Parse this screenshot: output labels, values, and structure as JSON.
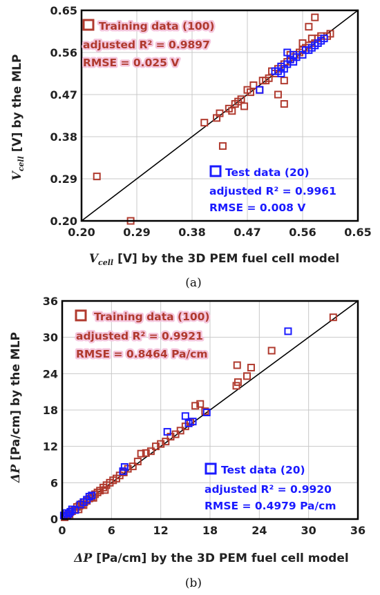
{
  "chart_data": [
    {
      "type": "scatter",
      "panel_label": "(a)",
      "xlabel_var": "V",
      "xlabel_sub": "cell",
      "xlabel_text": "[V] by the 3D PEM fuel cell model",
      "ylabel_var": "V",
      "ylabel_sub": "cell",
      "ylabel_text": "[V] by the MLP",
      "xlim": [
        0.2,
        0.65
      ],
      "ylim": [
        0.2,
        0.65
      ],
      "xticks": [
        "0.20",
        "0.29",
        "0.38",
        "0.47",
        "0.56",
        "0.65"
      ],
      "yticks": [
        "0.20",
        "0.29",
        "0.38",
        "0.47",
        "0.56",
        "0.65"
      ],
      "grid": true,
      "reference_line": "y = x",
      "legend_training": {
        "title": "Training data (100)",
        "r2": "adjusted R² = 0.9897",
        "rmse": "RMSE = 0.025 V",
        "color": "#b03a2e"
      },
      "legend_test": {
        "title": "Test data (20)",
        "r2": "adjusted R² = 0.9961",
        "rmse": "RMSE = 0.008 V",
        "color": "#1a1aff"
      },
      "series": [
        {
          "name": "Training data (100)",
          "color": "#b03a2e",
          "points": [
            [
              0.225,
              0.295
            ],
            [
              0.28,
              0.2
            ],
            [
              0.4,
              0.41
            ],
            [
              0.42,
              0.42
            ],
            [
              0.425,
              0.43
            ],
            [
              0.43,
              0.36
            ],
            [
              0.44,
              0.44
            ],
            [
              0.445,
              0.435
            ],
            [
              0.45,
              0.45
            ],
            [
              0.455,
              0.455
            ],
            [
              0.46,
              0.46
            ],
            [
              0.465,
              0.445
            ],
            [
              0.47,
              0.48
            ],
            [
              0.475,
              0.475
            ],
            [
              0.48,
              0.49
            ],
            [
              0.49,
              0.48
            ],
            [
              0.495,
              0.5
            ],
            [
              0.5,
              0.5
            ],
            [
              0.505,
              0.505
            ],
            [
              0.51,
              0.52
            ],
            [
              0.515,
              0.515
            ],
            [
              0.52,
              0.47
            ],
            [
              0.52,
              0.525
            ],
            [
              0.525,
              0.53
            ],
            [
              0.53,
              0.45
            ],
            [
              0.53,
              0.5
            ],
            [
              0.53,
              0.535
            ],
            [
              0.535,
              0.54
            ],
            [
              0.54,
              0.545
            ],
            [
              0.54,
              0.555
            ],
            [
              0.545,
              0.55
            ],
            [
              0.55,
              0.555
            ],
            [
              0.555,
              0.56
            ],
            [
              0.56,
              0.565
            ],
            [
              0.56,
              0.58
            ],
            [
              0.565,
              0.57
            ],
            [
              0.57,
              0.575
            ],
            [
              0.57,
              0.615
            ],
            [
              0.575,
              0.59
            ],
            [
              0.58,
              0.58
            ],
            [
              0.58,
              0.635
            ],
            [
              0.585,
              0.59
            ],
            [
              0.59,
              0.595
            ],
            [
              0.6,
              0.595
            ],
            [
              0.605,
              0.6
            ]
          ]
        },
        {
          "name": "Test data (20)",
          "color": "#1a1aff",
          "points": [
            [
              0.49,
              0.48
            ],
            [
              0.515,
              0.52
            ],
            [
              0.52,
              0.52
            ],
            [
              0.525,
              0.53
            ],
            [
              0.53,
              0.525
            ],
            [
              0.535,
              0.535
            ],
            [
              0.535,
              0.56
            ],
            [
              0.54,
              0.545
            ],
            [
              0.545,
              0.54
            ],
            [
              0.55,
              0.55
            ],
            [
              0.56,
              0.555
            ],
            [
              0.565,
              0.565
            ],
            [
              0.57,
              0.565
            ],
            [
              0.575,
              0.57
            ],
            [
              0.58,
              0.575
            ],
            [
              0.585,
              0.58
            ],
            [
              0.59,
              0.585
            ],
            [
              0.595,
              0.59
            ],
            [
              0.545,
              0.555
            ],
            [
              0.525,
              0.515
            ]
          ]
        }
      ]
    },
    {
      "type": "scatter",
      "panel_label": "(b)",
      "xlabel_var": "ΔP",
      "xlabel_text": "[Pa/cm] by the 3D PEM fuel cell model",
      "ylabel_var": "ΔP",
      "ylabel_text": "[Pa/cm] by the MLP",
      "xlim": [
        0,
        36
      ],
      "ylim": [
        0,
        36
      ],
      "xticks": [
        "0",
        "6",
        "12",
        "18",
        "24",
        "30",
        "36"
      ],
      "yticks": [
        "0",
        "6",
        "12",
        "18",
        "24",
        "30",
        "36"
      ],
      "grid": true,
      "reference_line": "y = x",
      "legend_training": {
        "title": "Training data (100)",
        "r2": "adjusted R² = 0.9921",
        "rmse": "RMSE = 0.8464 Pa/cm",
        "color": "#b03a2e"
      },
      "legend_test": {
        "title": "Test data (20)",
        "r2": "adjusted R² = 0.9920",
        "rmse": "RMSE = 0.4979 Pa/cm",
        "color": "#1a1aff"
      },
      "series": [
        {
          "name": "Training data (100)",
          "color": "#b03a2e",
          "points": [
            [
              0.3,
              0.3
            ],
            [
              0.6,
              0.7
            ],
            [
              0.9,
              0.8
            ],
            [
              1.2,
              1.3
            ],
            [
              1.5,
              1.5
            ],
            [
              1.8,
              2.0
            ],
            [
              2.1,
              2.2
            ],
            [
              2.4,
              2.5
            ],
            [
              2.7,
              2.8
            ],
            [
              3.0,
              3.0
            ],
            [
              3.3,
              3.4
            ],
            [
              3.6,
              3.7
            ],
            [
              4.0,
              4.1
            ],
            [
              4.3,
              4.4
            ],
            [
              4.6,
              4.7
            ],
            [
              5.0,
              5.2
            ],
            [
              5.4,
              5.6
            ],
            [
              5.8,
              6.0
            ],
            [
              6.2,
              6.4
            ],
            [
              6.6,
              6.7
            ],
            [
              7.0,
              7.2
            ],
            [
              7.5,
              7.7
            ],
            [
              8.0,
              8.3
            ],
            [
              8.6,
              8.7
            ],
            [
              9.2,
              9.5
            ],
            [
              9.6,
              10.8
            ],
            [
              10.2,
              10.9
            ],
            [
              10.8,
              11.2
            ],
            [
              11.4,
              12.0
            ],
            [
              12.0,
              12.4
            ],
            [
              12.6,
              12.8
            ],
            [
              13.2,
              13.6
            ],
            [
              13.8,
              14.0
            ],
            [
              14.4,
              14.6
            ],
            [
              15.0,
              15.3
            ],
            [
              15.6,
              16.0
            ],
            [
              16.2,
              18.7
            ],
            [
              16.8,
              19.0
            ],
            [
              17.4,
              17.8
            ],
            [
              21.3,
              25.4
            ],
            [
              21.2,
              22.0
            ],
            [
              21.4,
              22.6
            ],
            [
              22.5,
              23.6
            ],
            [
              23.0,
              25.0
            ],
            [
              25.5,
              27.8
            ],
            [
              33.0,
              33.3
            ],
            [
              2.0,
              1.6
            ],
            [
              2.6,
              2.3
            ],
            [
              3.8,
              3.5
            ],
            [
              5.2,
              4.8
            ]
          ]
        },
        {
          "name": "Test data (20)",
          "color": "#1a1aff",
          "points": [
            [
              0.2,
              0.6
            ],
            [
              0.5,
              1.0
            ],
            [
              0.8,
              0.9
            ],
            [
              1.2,
              1.6
            ],
            [
              1.6,
              1.5
            ],
            [
              2.2,
              2.4
            ],
            [
              2.6,
              2.8
            ],
            [
              3.0,
              3.2
            ],
            [
              3.3,
              3.7
            ],
            [
              3.6,
              3.9
            ],
            [
              7.4,
              7.9
            ],
            [
              7.6,
              8.6
            ],
            [
              12.8,
              14.4
            ],
            [
              15.0,
              17.0
            ],
            [
              15.4,
              15.8
            ],
            [
              15.9,
              16.1
            ],
            [
              17.6,
              17.6
            ],
            [
              27.5,
              31.0
            ],
            [
              1.0,
              1.2
            ],
            [
              0.6,
              0.5
            ]
          ]
        }
      ]
    }
  ]
}
